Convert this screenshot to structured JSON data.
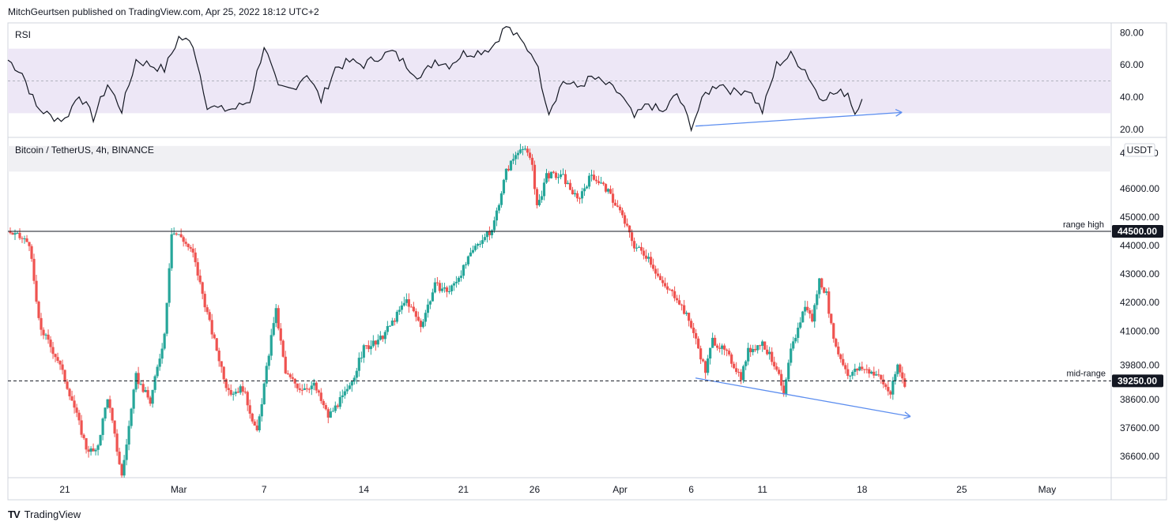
{
  "header": {
    "text": "MitchGeurtsen published on TradingView.com, Apr 25, 2022 18:12 UTC+2"
  },
  "footer": {
    "logo": "TV",
    "brand": "TradingView"
  },
  "colors": {
    "up": "#26a69a",
    "down": "#ef5350",
    "rsi_band": "#ede7f6",
    "divergence": "#5b8def",
    "zone": "#f0f0f3",
    "grid": "#e0e3eb",
    "axis_text": "#131722"
  },
  "rsi_panel": {
    "title": "RSI",
    "ticks": [
      {
        "value": 80,
        "label": "80.00"
      },
      {
        "value": 60,
        "label": "60.00"
      },
      {
        "value": 40,
        "label": "40.00"
      },
      {
        "value": 20,
        "label": "20.00"
      }
    ]
  },
  "price_panel": {
    "title": "Bitcoin / TetherUS, 4h, BINANCE",
    "currency_badge": "USDT",
    "top_tick_partial": "4",
    "top_tick_partial_end": "0",
    "ticks": [
      {
        "value": 46000,
        "label": "46000.00"
      },
      {
        "value": 45000,
        "label": "45000.00"
      },
      {
        "value": 44000,
        "label": "44000.00"
      },
      {
        "value": 43000,
        "label": "43000.00"
      },
      {
        "value": 42000,
        "label": "42000.00"
      },
      {
        "value": 41000,
        "label": "41000.00"
      },
      {
        "value": 39800,
        "label": "39800.00"
      },
      {
        "value": 38600,
        "label": "38600.00"
      },
      {
        "value": 37600,
        "label": "37600.00"
      },
      {
        "value": 36600,
        "label": "36600.00"
      }
    ],
    "range_high": {
      "label": "range high",
      "value": 44500,
      "tag": "44500.00"
    },
    "mid_range": {
      "label": "mid-range",
      "value": 39250,
      "tag": "39250.00"
    }
  },
  "time_axis": {
    "ticks": [
      {
        "label": "21",
        "day": 3
      },
      {
        "label": "Mar",
        "day": 11
      },
      {
        "label": "7",
        "day": 17
      },
      {
        "label": "14",
        "day": 24
      },
      {
        "label": "21",
        "day": 31
      },
      {
        "label": "26",
        "day": 36
      },
      {
        "label": "Apr",
        "day": 42
      },
      {
        "label": "6",
        "day": 47
      },
      {
        "label": "11",
        "day": 52
      },
      {
        "label": "18",
        "day": 59
      },
      {
        "label": "25",
        "day": 66
      },
      {
        "label": "May",
        "day": 72
      }
    ]
  },
  "chart_data": {
    "type": "candlestick",
    "title": "Bitcoin / TetherUS, 4h, BINANCE",
    "x_unit": "days since Feb 16, 2022",
    "x_range": [
      -1.0,
      76.5
    ],
    "ylim": [
      35850,
      47800
    ],
    "path_anchors": [
      [
        -1.0,
        44500
      ],
      [
        0.5,
        44100
      ],
      [
        1.2,
        41200
      ],
      [
        2.5,
        40000
      ],
      [
        3.5,
        38600
      ],
      [
        4.5,
        36900
      ],
      [
        5.2,
        36700
      ],
      [
        6.0,
        38700
      ],
      [
        7.0,
        35900
      ],
      [
        8.0,
        39400
      ],
      [
        9.0,
        38500
      ],
      [
        10.0,
        40900
      ],
      [
        10.5,
        44500
      ],
      [
        11.2,
        44300
      ],
      [
        12.0,
        43700
      ],
      [
        13.2,
        41200
      ],
      [
        14.5,
        38800
      ],
      [
        15.5,
        39000
      ],
      [
        16.5,
        37400
      ],
      [
        17.8,
        41800
      ],
      [
        18.5,
        39500
      ],
      [
        19.5,
        39000
      ],
      [
        20.5,
        39100
      ],
      [
        21.5,
        38000
      ],
      [
        23.0,
        39000
      ],
      [
        24.0,
        40400
      ],
      [
        25.0,
        40600
      ],
      [
        26.0,
        41300
      ],
      [
        27.0,
        42100
      ],
      [
        28.0,
        41200
      ],
      [
        29.0,
        42600
      ],
      [
        30.0,
        42400
      ],
      [
        31.0,
        43200
      ],
      [
        32.0,
        44100
      ],
      [
        33.0,
        44500
      ],
      [
        34.0,
        46600
      ],
      [
        35.0,
        47500
      ],
      [
        35.8,
        47000
      ],
      [
        36.2,
        45200
      ],
      [
        36.8,
        46500
      ],
      [
        38.0,
        46400
      ],
      [
        39.0,
        45600
      ],
      [
        40.0,
        46500
      ],
      [
        41.0,
        46000
      ],
      [
        42.0,
        45200
      ],
      [
        43.0,
        44000
      ],
      [
        44.0,
        43600
      ],
      [
        45.0,
        42600
      ],
      [
        46.0,
        42200
      ],
      [
        47.0,
        41200
      ],
      [
        48.0,
        39600
      ],
      [
        48.5,
        40700
      ],
      [
        49.5,
        40200
      ],
      [
        50.5,
        39400
      ],
      [
        51.0,
        40300
      ],
      [
        52.0,
        40600
      ],
      [
        53.0,
        39700
      ],
      [
        53.5,
        38700
      ],
      [
        54.0,
        40300
      ],
      [
        55.0,
        41900
      ],
      [
        55.5,
        41400
      ],
      [
        56.0,
        42800
      ],
      [
        56.5,
        42300
      ],
      [
        57.0,
        40600
      ],
      [
        58.0,
        39500
      ],
      [
        59.0,
        39700
      ],
      [
        60.0,
        39500
      ],
      [
        61.0,
        38800
      ],
      [
        61.5,
        39800
      ],
      [
        62.0,
        39100
      ]
    ],
    "rsi_range": [
      15,
      86
    ],
    "rsi_band": [
      30,
      70
    ],
    "rsi_midline": 50,
    "rsi_anchors": [
      [
        -1.0,
        63
      ],
      [
        0.0,
        55
      ],
      [
        1.0,
        34
      ],
      [
        2.0,
        28
      ],
      [
        3.0,
        26
      ],
      [
        4.0,
        42
      ],
      [
        5.0,
        27
      ],
      [
        6.0,
        48
      ],
      [
        7.0,
        32
      ],
      [
        8.0,
        63
      ],
      [
        9.0,
        60
      ],
      [
        10.0,
        57
      ],
      [
        11.0,
        77
      ],
      [
        12.0,
        73
      ],
      [
        13.0,
        35
      ],
      [
        14.0,
        32
      ],
      [
        15.0,
        33
      ],
      [
        16.0,
        38
      ],
      [
        17.0,
        72
      ],
      [
        18.0,
        45
      ],
      [
        19.0,
        45
      ],
      [
        20.0,
        55
      ],
      [
        21.0,
        38
      ],
      [
        22.0,
        58
      ],
      [
        23.0,
        62
      ],
      [
        24.0,
        60
      ],
      [
        25.0,
        65
      ],
      [
        26.0,
        68
      ],
      [
        27.0,
        60
      ],
      [
        28.0,
        52
      ],
      [
        29.0,
        63
      ],
      [
        30.0,
        60
      ],
      [
        31.0,
        67
      ],
      [
        32.0,
        68
      ],
      [
        33.0,
        71
      ],
      [
        34.0,
        84
      ],
      [
        35.0,
        75
      ],
      [
        36.0,
        65
      ],
      [
        37.0,
        31
      ],
      [
        38.0,
        50
      ],
      [
        39.0,
        46
      ],
      [
        40.0,
        52
      ],
      [
        41.0,
        48
      ],
      [
        42.0,
        42
      ],
      [
        43.0,
        27
      ],
      [
        44.0,
        36
      ],
      [
        45.0,
        30
      ],
      [
        46.0,
        42
      ],
      [
        47.0,
        22
      ],
      [
        48.0,
        42
      ],
      [
        49.0,
        49
      ],
      [
        50.0,
        43
      ],
      [
        51.0,
        45
      ],
      [
        52.0,
        31
      ],
      [
        53.0,
        60
      ],
      [
        54.0,
        66
      ],
      [
        55.0,
        57
      ],
      [
        56.0,
        40
      ],
      [
        57.0,
        42
      ],
      [
        58.0,
        43
      ],
      [
        58.5,
        30
      ],
      [
        59.0,
        41
      ]
    ],
    "rsi_divergence": [
      [
        47.3,
        22
      ],
      [
        61.8,
        30.5
      ]
    ],
    "price_divergence": [
      [
        47.3,
        39350
      ],
      [
        62.4,
        38000
      ]
    ],
    "resistance_zone": [
      46600,
      47500
    ],
    "range_high": 44500,
    "mid_range": 39250
  }
}
